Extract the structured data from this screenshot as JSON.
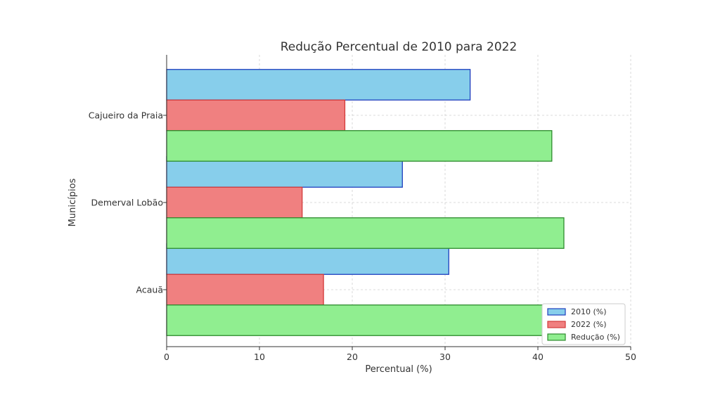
{
  "chart_data": {
    "type": "bar",
    "orientation": "horizontal",
    "title": "Redução Percentual de 2010 para 2022",
    "xlabel": "Percentual (%)",
    "ylabel": "Municípios",
    "categories": [
      "Acauã",
      "Demerval Lobão",
      "Cajueiro da Praia"
    ],
    "series": [
      {
        "name": "2010 (%)",
        "values": [
          30.4,
          25.4,
          32.7
        ],
        "color": "#87ceeb",
        "edge": "#1f3fbf"
      },
      {
        "name": "2022 (%)",
        "values": [
          16.9,
          14.6,
          19.2
        ],
        "color": "#f08080",
        "edge": "#d33a3a"
      },
      {
        "name": "Redução (%)",
        "values": [
          44.5,
          42.8,
          41.5
        ],
        "color": "#90ee90",
        "edge": "#2e8b2e"
      }
    ],
    "xlim": [
      0,
      50
    ],
    "xticks": [
      0,
      10,
      20,
      30,
      40,
      50
    ],
    "grid": true,
    "legend": "lower-right"
  }
}
